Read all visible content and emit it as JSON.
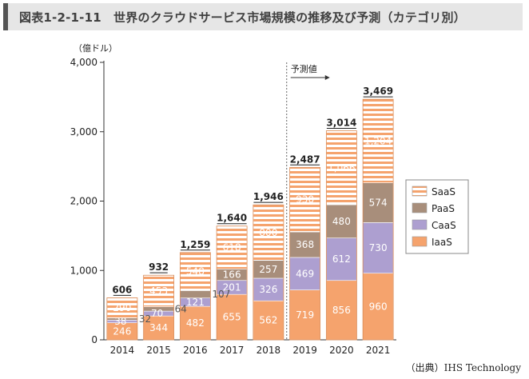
{
  "header": {
    "title": "図表1-2-1-11　世界のクラウドサービス市場規模の推移及び予測（カテゴリ別）"
  },
  "source": "（出典）IHS Technology",
  "chart_data": {
    "type": "bar",
    "stacked": true,
    "ylabel": "（億ドル）",
    "ylim": [
      0,
      4000
    ],
    "yticks": [
      0,
      1000,
      2000,
      3000,
      4000
    ],
    "ytick_labels": [
      "0",
      "1,000",
      "2,000",
      "3,000",
      "4,000"
    ],
    "categories": [
      "2014",
      "2015",
      "2016",
      "2017",
      "2018",
      "2019",
      "2020",
      "2021"
    ],
    "series": [
      {
        "name": "IaaS",
        "color": "#f5a36d",
        "striped": false,
        "values": [
          246,
          344,
          482,
          655,
          562,
          719,
          856,
          960
        ],
        "labels": [
          "246",
          "344",
          "482",
          "655",
          "562",
          "719",
          "856",
          "960"
        ]
      },
      {
        "name": "CaaS",
        "color": "#ad9fd0",
        "striped": false,
        "values": [
          38,
          70,
          121,
          201,
          326,
          469,
          612,
          730
        ],
        "labels": [
          "38",
          "70",
          "121",
          "201",
          "326",
          "469",
          "612",
          "730"
        ]
      },
      {
        "name": "PaaS",
        "color": "#a88e7b",
        "striped": false,
        "values": [
          32,
          64,
          107,
          166,
          257,
          368,
          480,
          574
        ],
        "labels": [
          "32",
          "64",
          "107",
          "166",
          "257",
          "368",
          "480",
          "574"
        ]
      },
      {
        "name": "SaaS",
        "color": "#f5a36d",
        "striped": true,
        "values": [
          290,
          453,
          548,
          618,
          800,
          930,
          1066,
          1204
        ],
        "labels": [
          "290",
          "453",
          "548",
          "618",
          "800",
          "930",
          "1,066",
          "1,204"
        ]
      }
    ],
    "totals": [
      606,
      932,
      1259,
      1640,
      1946,
      2487,
      3014,
      3469
    ],
    "total_labels": [
      "606",
      "932",
      "1,259",
      "1,640",
      "1,946",
      "2,487",
      "3,014",
      "3,469"
    ],
    "forecast_label": "予測値",
    "forecast_start": "2019",
    "legend": {
      "position": "right",
      "order": [
        "SaaS",
        "PaaS",
        "CaaS",
        "IaaS"
      ]
    }
  }
}
